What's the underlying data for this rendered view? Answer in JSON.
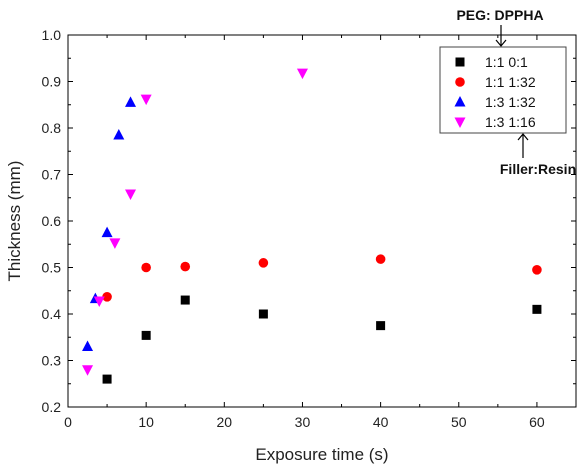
{
  "chart_data": {
    "type": "scatter",
    "xlabel": "Exposure time (s)",
    "ylabel": "Thickness (mm)",
    "xlim": [
      0,
      65
    ],
    "ylim": [
      0.2,
      1.0
    ],
    "xticks": [
      0,
      10,
      20,
      30,
      40,
      50,
      60
    ],
    "yticks": [
      0.2,
      0.3,
      0.4,
      0.5,
      0.6,
      0.7,
      0.8,
      0.9,
      1.0
    ],
    "xtick_labels": [
      "0",
      "10",
      "20",
      "30",
      "40",
      "50",
      "60"
    ],
    "ytick_labels": [
      "0.2",
      "0.3",
      "0.4",
      "0.5",
      "0.6",
      "0.7",
      "0.8",
      "0.9",
      "1.0"
    ],
    "grid": false,
    "legend_position": "top-right",
    "series": [
      {
        "name": "1:1 0:1",
        "marker": "square",
        "color": "#000000",
        "x": [
          5,
          10,
          15,
          25,
          40,
          60
        ],
        "y": [
          0.26,
          0.354,
          0.43,
          0.4,
          0.375,
          0.41
        ]
      },
      {
        "name": "1:1 1:32",
        "marker": "circle",
        "color": "#ff0000",
        "x": [
          5,
          10,
          15,
          25,
          40,
          60
        ],
        "y": [
          0.437,
          0.5,
          0.502,
          0.51,
          0.518,
          0.495
        ]
      },
      {
        "name": "1:3 1:32",
        "marker": "triangle-up",
        "color": "#0000ff",
        "x": [
          2.5,
          3.5,
          5,
          6.5,
          8
        ],
        "y": [
          0.33,
          0.433,
          0.575,
          0.785,
          0.855
        ]
      },
      {
        "name": "1:3 1:16",
        "marker": "triangle-down",
        "color": "#ff00ff",
        "x": [
          2.5,
          4,
          6,
          8,
          10,
          30
        ],
        "y": [
          0.28,
          0.428,
          0.553,
          0.658,
          0.862,
          0.918
        ]
      }
    ],
    "annotations": [
      {
        "text": "PEG: DPPHA",
        "arrow": "down"
      },
      {
        "text": "Filler:Resin",
        "arrow": "up"
      }
    ]
  }
}
